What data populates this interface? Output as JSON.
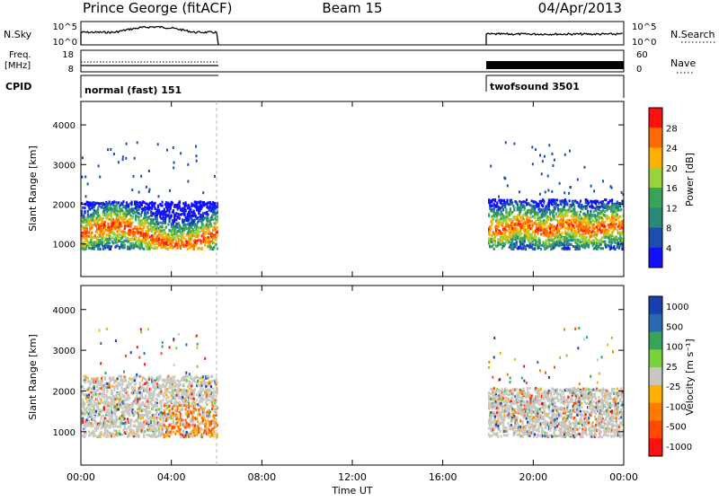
{
  "header": {
    "station": "Prince George (fitACF)",
    "beam": "Beam 15",
    "date": "04/Apr/2013"
  },
  "strip_nsky": {
    "left_label": "N.Sky",
    "right_label": "N.Search",
    "left_ticks": [
      "10^5",
      "10^0"
    ],
    "right_ticks": [
      "10^5",
      "10^0"
    ]
  },
  "strip_freq": {
    "left_label_line1": "Freq.",
    "left_label_line2": "[MHz]",
    "left_ticks": [
      "18",
      "8"
    ],
    "right_label": "Nave",
    "right_ticks": [
      "60",
      "0"
    ]
  },
  "strip_cpid": {
    "label": "CPID",
    "segments": [
      {
        "label": "normal (fast) 151",
        "start_h": 0,
        "end_h": 6
      },
      {
        "label": "twofsound 3501",
        "start_h": 18,
        "end_h": 24
      }
    ]
  },
  "chart_data": [
    {
      "type": "heatmap",
      "name": "power-panel",
      "ylabel": "Slant Range [km]",
      "ylim": [
        180,
        4590
      ],
      "yticks": [
        "1000",
        "2000",
        "3000",
        "4000"
      ],
      "xlim_hours": [
        0,
        24
      ],
      "colorbar_label": "Power [dB]",
      "colorbar_ticks": [
        "28",
        "24",
        "20",
        "16",
        "12",
        "8",
        "4"
      ],
      "colors": [
        "#ff1010",
        "#ff6a00",
        "#ffb000",
        "#9ad23a",
        "#3aa35a",
        "#2a8a7a",
        "#1a4fb0",
        "#1010ff"
      ],
      "scatter_blocks": [
        {
          "start_h": 0.0,
          "end_h": 6.0,
          "range_min_km": 900,
          "range_max_km": 2100
        },
        {
          "start_h": 18.0,
          "end_h": 24.0,
          "range_min_km": 900,
          "range_max_km": 2150
        }
      ]
    },
    {
      "type": "heatmap",
      "name": "velocity-panel",
      "ylabel": "Slant Range [km]",
      "ylim": [
        180,
        4590
      ],
      "yticks": [
        "1000",
        "2000",
        "3000",
        "4000"
      ],
      "xlim_hours": [
        0,
        24
      ],
      "xticks": [
        "00:00",
        "04:00",
        "08:00",
        "12:00",
        "16:00",
        "20:00",
        "00:00"
      ],
      "xlabel": "Time UT",
      "colorbar_label": "Velocity [m s⁻¹]",
      "colorbar_ticks": [
        "1000",
        "500",
        "100",
        "25",
        "-25",
        "-100",
        "-500",
        "-1000"
      ],
      "colors": [
        "#1a3fb0",
        "#2a6ab0",
        "#3aa35a",
        "#7ad23a",
        "#c8c8c0",
        "#ffb000",
        "#ff7a00",
        "#ff4a00",
        "#ff1010"
      ],
      "scatter_blocks": [
        {
          "start_h": 0.0,
          "end_h": 6.0,
          "range_min_km": 900,
          "range_max_km": 2400
        },
        {
          "start_h": 18.0,
          "end_h": 24.0,
          "range_min_km": 900,
          "range_max_km": 2100
        }
      ]
    }
  ]
}
